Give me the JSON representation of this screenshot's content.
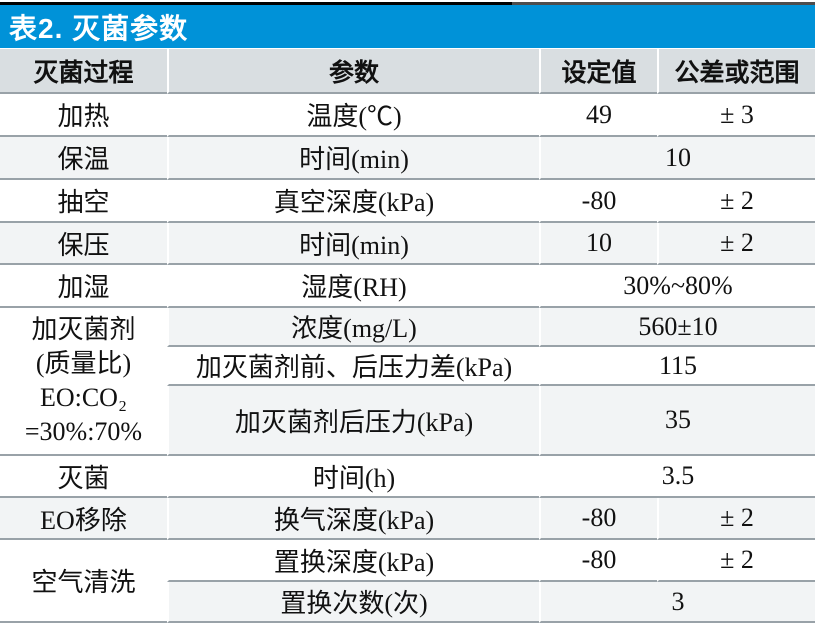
{
  "title": "表2. 灭菌参数",
  "colors": {
    "accent_blue": "#0092d8",
    "header_gray": "#d9dee1",
    "row_alt_gray": "#f2f4f5",
    "divider_gray": "#99a2a8",
    "title_text": "#ffffff",
    "body_text": "#111111"
  },
  "columns": {
    "process": "灭菌过程",
    "parameter": "参数",
    "set_value": "设定值",
    "tolerance": "公差或范围"
  },
  "rows": [
    {
      "process": "加热",
      "param": "温度(℃)",
      "set": "49",
      "tol": "± 3"
    },
    {
      "process": "保温",
      "param": "时间(min)",
      "value": "10"
    },
    {
      "process": "抽空",
      "param": "真空深度(kPa)",
      "set": "-80",
      "tol": "± 2"
    },
    {
      "process": "保压",
      "param": "时间(min)",
      "set": "10",
      "tol": "± 2"
    },
    {
      "process": "加湿",
      "param": "湿度(RH)",
      "value": "30%~80%"
    },
    {
      "process_lines": [
        "加灭菌剂",
        "(质量比)",
        "EO:CO₂",
        "=30%:70%"
      ],
      "param": "浓度(mg/L)",
      "value": "560±10"
    },
    {
      "param": "加灭菌剂前、后压力差(kPa)",
      "value": "115"
    },
    {
      "param": "加灭菌剂后压力(kPa)",
      "value": "35"
    },
    {
      "process": "灭菌",
      "param": "时间(h)",
      "value": "3.5"
    },
    {
      "process": "EO移除",
      "param": "换气深度(kPa)",
      "set": "-80",
      "tol": "± 2"
    },
    {
      "process": "空气清洗",
      "param": "置换深度(kPa)",
      "set": "-80",
      "tol": "± 2"
    },
    {
      "param": "置换次数(次)",
      "value": "3"
    }
  ]
}
